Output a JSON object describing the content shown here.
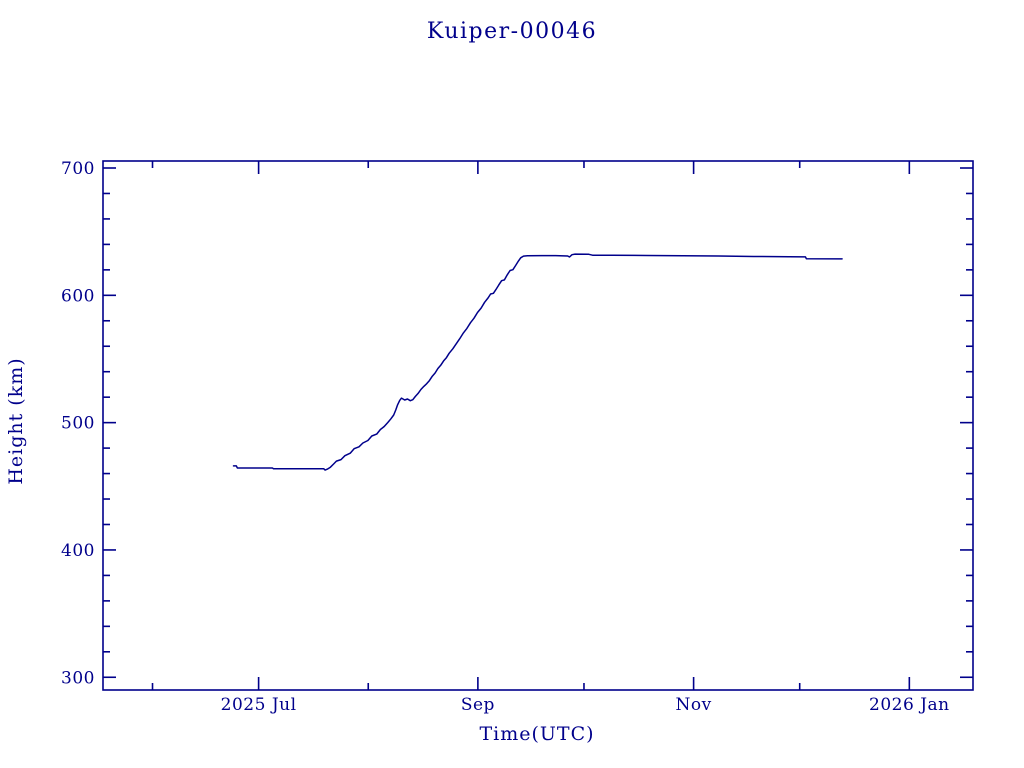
{
  "window": {
    "background_color": "#FFFFFF",
    "plot_color": "#00008B"
  },
  "chart_data": {
    "type": "line",
    "title": "Kuiper-00046",
    "xlabel": "Time(UTC)",
    "ylabel": "Height (km)",
    "grid": false,
    "legend": null,
    "x_unit": "days since 2025-06-01",
    "xlim": [
      -14,
      232
    ],
    "ylim": [
      290,
      705.5
    ],
    "x_ticks_major": [
      {
        "day": 30,
        "label": "2025 Jul"
      },
      {
        "day": 92,
        "label": "Sep"
      },
      {
        "day": 153,
        "label": "Nov"
      },
      {
        "day": 214,
        "label": "2026 Jan"
      }
    ],
    "x_ticks_minor_days": [
      0,
      61,
      122,
      183
    ],
    "y_ticks_major": [
      300,
      400,
      500,
      600,
      700
    ],
    "y_ticks_minor": [
      320,
      340,
      360,
      380,
      420,
      440,
      460,
      480,
      520,
      540,
      560,
      580,
      620,
      640,
      660,
      680
    ],
    "series": [
      {
        "name": "height",
        "color": "#00008B",
        "points": [
          [
            22.9,
            466.0
          ],
          [
            23.7,
            466.0
          ],
          [
            24.0,
            464.4
          ],
          [
            33.9,
            464.4
          ],
          [
            34.2,
            463.8
          ],
          [
            48.4,
            463.8
          ],
          [
            48.8,
            462.7
          ],
          [
            49.4,
            463.4
          ],
          [
            50.3,
            465.0
          ],
          [
            51.2,
            467.5
          ],
          [
            52.0,
            469.8
          ],
          [
            53.3,
            471.0
          ],
          [
            54.4,
            474.0
          ],
          [
            55.9,
            476.0
          ],
          [
            57.0,
            479.5
          ],
          [
            58.4,
            481.0
          ],
          [
            59.5,
            484.0
          ],
          [
            60.9,
            486.0
          ],
          [
            62.0,
            489.5
          ],
          [
            63.4,
            491.0
          ],
          [
            64.4,
            494.5
          ],
          [
            65.5,
            497.0
          ],
          [
            66.5,
            500.0
          ],
          [
            67.4,
            503.0
          ],
          [
            68.2,
            506.0
          ],
          [
            68.8,
            510.0
          ],
          [
            69.3,
            514.0
          ],
          [
            69.9,
            517.5
          ],
          [
            70.4,
            519.3
          ],
          [
            71.3,
            517.8
          ],
          [
            72.1,
            518.6
          ],
          [
            72.9,
            517.2
          ],
          [
            73.6,
            518.0
          ],
          [
            74.3,
            520.5
          ],
          [
            75.1,
            523.0
          ],
          [
            75.9,
            526.0
          ],
          [
            76.7,
            528.5
          ],
          [
            77.5,
            530.5
          ],
          [
            78.3,
            533.0
          ],
          [
            79.1,
            536.5
          ],
          [
            79.9,
            539.0
          ],
          [
            80.7,
            542.5
          ],
          [
            81.5,
            545.0
          ],
          [
            82.3,
            548.5
          ],
          [
            83.1,
            551.0
          ],
          [
            83.9,
            554.5
          ],
          [
            84.9,
            558.0
          ],
          [
            85.9,
            562.0
          ],
          [
            86.9,
            566.0
          ],
          [
            87.9,
            570.5
          ],
          [
            88.9,
            574.0
          ],
          [
            89.9,
            578.5
          ],
          [
            90.9,
            582.0
          ],
          [
            91.9,
            586.5
          ],
          [
            92.9,
            590.0
          ],
          [
            93.9,
            594.5
          ],
          [
            94.9,
            598.0
          ],
          [
            95.6,
            601.0
          ],
          [
            96.4,
            601.6
          ],
          [
            97.1,
            604.5
          ],
          [
            97.9,
            608.0
          ],
          [
            98.7,
            611.5
          ],
          [
            99.5,
            612.1
          ],
          [
            100.3,
            616.0
          ],
          [
            101.1,
            619.5
          ],
          [
            101.9,
            620.1
          ],
          [
            102.7,
            623.5
          ],
          [
            103.5,
            627.0
          ],
          [
            104.1,
            629.5
          ],
          [
            104.9,
            630.8
          ],
          [
            106.0,
            631.1
          ],
          [
            110.0,
            631.2
          ],
          [
            114.0,
            631.2
          ],
          [
            117.4,
            630.9
          ],
          [
            117.9,
            630.1
          ],
          [
            118.6,
            631.9
          ],
          [
            119.5,
            632.4
          ],
          [
            123.4,
            632.2
          ],
          [
            124.4,
            631.5
          ],
          [
            130.0,
            631.4
          ],
          [
            140.0,
            631.3
          ],
          [
            150.0,
            631.1
          ],
          [
            160.0,
            630.9
          ],
          [
            170.0,
            630.5
          ],
          [
            180.0,
            630.3
          ],
          [
            184.6,
            630.2
          ],
          [
            184.9,
            628.8
          ],
          [
            195.0,
            628.6
          ]
        ]
      }
    ]
  }
}
